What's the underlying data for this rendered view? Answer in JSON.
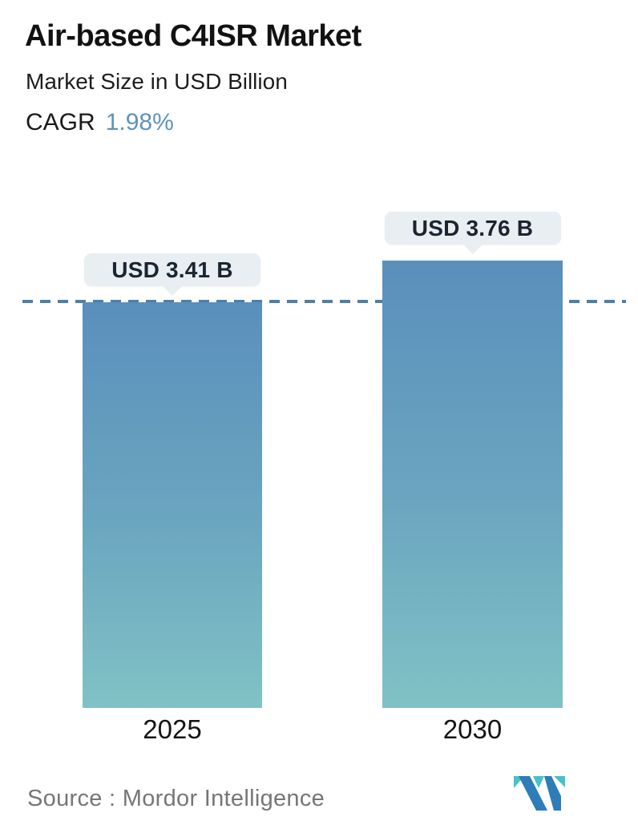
{
  "header": {
    "title": "Air-based C4ISR Market",
    "subtitle": "Market Size in USD Billion",
    "cagr_label": "CAGR",
    "cagr_value": "1.98%"
  },
  "chart_data": {
    "type": "bar",
    "title": "Air-based C4ISR Market",
    "subtitle": "Market Size in USD Billion",
    "cagr": "1.98%",
    "unit": "USD Billion",
    "categories": [
      "2025",
      "2030"
    ],
    "values": [
      3.41,
      3.76
    ],
    "value_labels": [
      "USD 3.41 B",
      "USD 3.76 B"
    ],
    "baseline": 0,
    "reference_line": {
      "value": 3.41,
      "style": "dashed",
      "color": "#4d80a9"
    },
    "grid": false,
    "legend": false,
    "bar_gradient_top": "#5a8fbc",
    "bar_gradient_bottom": "#80c2c5"
  },
  "footer": {
    "source": "Source :  Mordor Intelligence",
    "logo_name": "mordor-intelligence-logo"
  },
  "colors": {
    "accent_blue": "#5e93be",
    "tooltip_bg": "#e9eef2",
    "text_dark": "#121212",
    "source_gray": "#767676",
    "logo_blue": "#2e7cb8",
    "logo_teal": "#45c2cb"
  }
}
